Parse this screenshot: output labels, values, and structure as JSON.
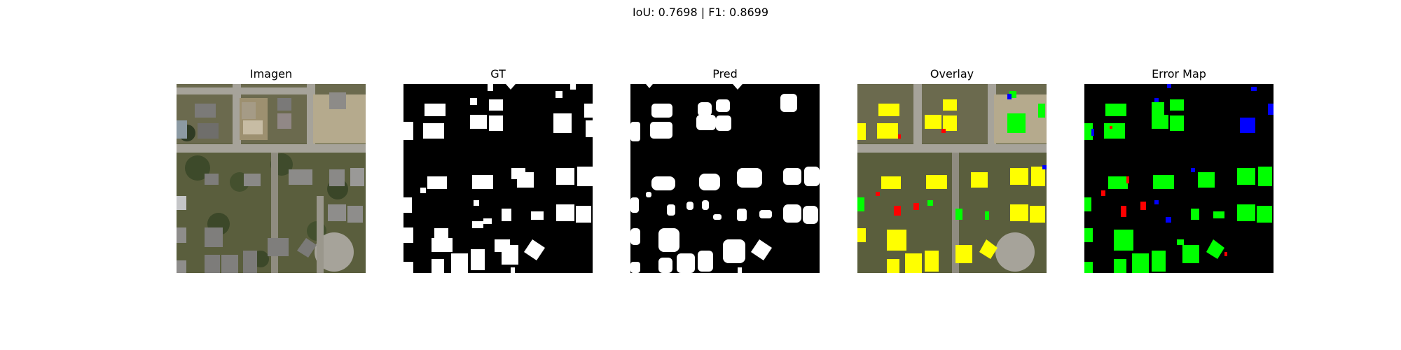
{
  "figure": {
    "suptitle": "IoU: 0.7698 | F1: 0.8699"
  },
  "panels": [
    {
      "title": "Imagen"
    },
    {
      "title": "GT"
    },
    {
      "title": "Pred"
    },
    {
      "title": "Overlay"
    },
    {
      "title": "Error Map"
    }
  ],
  "colors": {
    "mask_background": "#000000",
    "mask_foreground": "#ffffff",
    "true_positive": "#00ff00",
    "false_positive": "#ff0000",
    "false_negative": "#0000ff",
    "overlay_match": "#ffff00"
  }
}
